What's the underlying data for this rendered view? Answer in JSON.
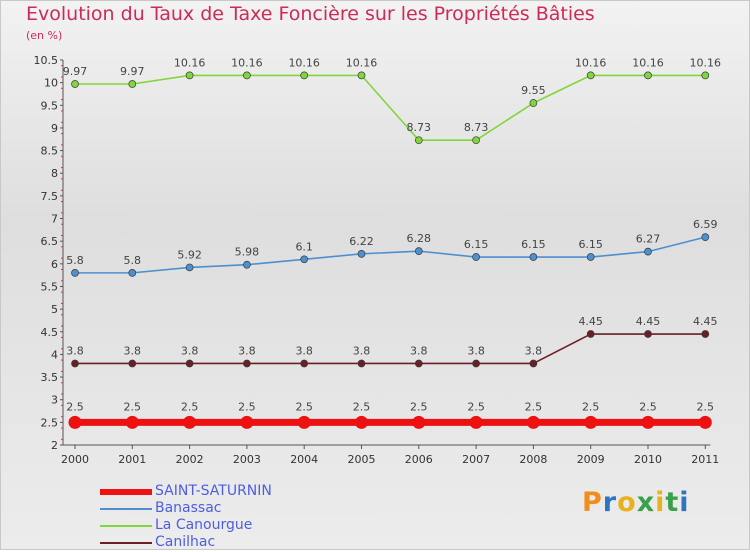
{
  "colors": {
    "title": "#cc2b55",
    "saint": "#ee1111",
    "banassac": "#4d8fcf",
    "canourgue": "#82d63d",
    "canilhac": "#6a1f25"
  },
  "logo": {
    "text": "Proxiti",
    "icon": "proxiti-logo-icon"
  },
  "chart_data": {
    "type": "line",
    "title": "Evolution du Taux de Taxe Foncière sur les Propriétés Bâties",
    "subtitle": "(en %)",
    "xlabel": "",
    "ylabel": "",
    "x": [
      "2000",
      "2001",
      "2002",
      "2003",
      "2004",
      "2005",
      "2006",
      "2007",
      "2008",
      "2009",
      "2010",
      "2011"
    ],
    "ylim": [
      2,
      10.5
    ],
    "yticks": [
      2,
      2.5,
      3,
      3.5,
      4,
      4.5,
      5,
      5.5,
      6,
      6.5,
      7,
      7.5,
      8,
      8.5,
      9,
      9.5,
      10,
      10.5
    ],
    "ytick_labels": [
      "2",
      "2.5",
      "3",
      "3.5",
      "4",
      "4.5",
      "5",
      "5.5",
      "6",
      "6.5",
      "7",
      "7.5",
      "8",
      "8.5",
      "9",
      "9.5",
      "10",
      "10.5"
    ],
    "legend_position": "bottom-left",
    "series": [
      {
        "name": "SAINT-SATURNIN",
        "key": "saint",
        "values": [
          2.5,
          2.5,
          2.5,
          2.5,
          2.5,
          2.5,
          2.5,
          2.5,
          2.5,
          2.5,
          2.5,
          2.5
        ],
        "labels": [
          "2.5",
          "2.5",
          "2.5",
          "2.5",
          "2.5",
          "2.5",
          "2.5",
          "2.5",
          "2.5",
          "2.5",
          "2.5",
          "2.5"
        ]
      },
      {
        "name": "Banassac",
        "key": "banassac",
        "values": [
          5.8,
          5.8,
          5.92,
          5.98,
          6.1,
          6.22,
          6.28,
          6.15,
          6.15,
          6.15,
          6.27,
          6.59
        ],
        "labels": [
          "5.8",
          "5.8",
          "5.92",
          "5.98",
          "6.1",
          "6.22",
          "6.28",
          "6.15",
          "6.15",
          "6.15",
          "6.27",
          "6.59"
        ]
      },
      {
        "name": "La Canourgue",
        "key": "canourgue",
        "values": [
          9.97,
          9.97,
          10.16,
          10.16,
          10.16,
          10.16,
          8.73,
          8.73,
          9.55,
          10.16,
          10.16,
          10.16
        ],
        "labels": [
          "9.97",
          "9.97",
          "10.16",
          "10.16",
          "10.16",
          "10.16",
          "8.73",
          "8.73",
          "9.55",
          "10.16",
          "10.16",
          "10.16"
        ]
      },
      {
        "name": "Canilhac",
        "key": "canilhac",
        "values": [
          3.8,
          3.8,
          3.8,
          3.8,
          3.8,
          3.8,
          3.8,
          3.8,
          3.8,
          4.45,
          4.45,
          4.45
        ],
        "labels": [
          "3.8",
          "3.8",
          "3.8",
          "3.8",
          "3.8",
          "3.8",
          "3.8",
          "3.8",
          "3.8",
          "4.45",
          "4.45",
          "4.45"
        ]
      }
    ]
  }
}
